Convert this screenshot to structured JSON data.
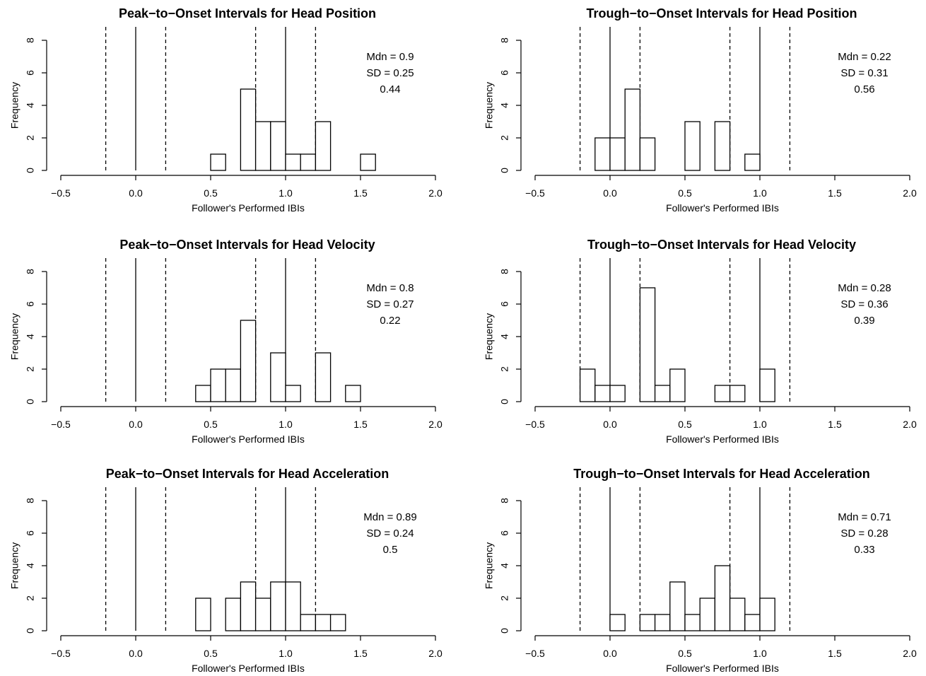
{
  "x_ticks": [
    -0.5,
    0.0,
    0.5,
    1.0,
    1.5,
    2.0
  ],
  "x_tick_labels": [
    "−0.5",
    "0.0",
    "0.5",
    "1.0",
    "1.5",
    "2.0"
  ],
  "y_ticks": [
    0,
    2,
    4,
    6,
    8
  ],
  "y_tick_labels": [
    "0",
    "2",
    "4",
    "6",
    "8"
  ],
  "chart_data": [
    {
      "type": "bar",
      "title": "Peak−to−Onset Intervals for Head Position",
      "xlabel": "Follower's Performed IBIs",
      "ylabel": "Frequency",
      "xlim": [
        -0.5,
        2.0
      ],
      "ylim": [
        0,
        8
      ],
      "bin_width": 0.1,
      "bins": [
        {
          "x0": 0.5,
          "count": 1
        },
        {
          "x0": 0.7,
          "count": 5
        },
        {
          "x0": 0.8,
          "count": 3
        },
        {
          "x0": 0.9,
          "count": 3
        },
        {
          "x0": 1.0,
          "count": 1
        },
        {
          "x0": 1.1,
          "count": 1
        },
        {
          "x0": 1.2,
          "count": 3
        },
        {
          "x0": 1.5,
          "count": 1
        }
      ],
      "solid_lines": [
        0.0,
        1.0
      ],
      "dashed_lines": [
        -0.2,
        0.2,
        0.8,
        1.2
      ],
      "stats": [
        "Mdn =  0.9",
        "SD =  0.25",
        "0.44"
      ]
    },
    {
      "type": "bar",
      "title": "Trough−to−Onset Intervals for Head Position",
      "xlabel": "Follower's Performed IBIs",
      "ylabel": "Frequency",
      "xlim": [
        -0.5,
        2.0
      ],
      "ylim": [
        0,
        8
      ],
      "bin_width": 0.1,
      "bins": [
        {
          "x0": -0.1,
          "count": 2
        },
        {
          "x0": 0.0,
          "count": 2
        },
        {
          "x0": 0.1,
          "count": 5
        },
        {
          "x0": 0.2,
          "count": 2
        },
        {
          "x0": 0.5,
          "count": 3
        },
        {
          "x0": 0.7,
          "count": 3
        },
        {
          "x0": 0.9,
          "count": 1
        }
      ],
      "solid_lines": [
        0.0,
        1.0
      ],
      "dashed_lines": [
        -0.2,
        0.2,
        0.8,
        1.2
      ],
      "stats": [
        "Mdn =  0.22",
        "SD =  0.31",
        "0.56"
      ]
    },
    {
      "type": "bar",
      "title": "Peak−to−Onset Intervals for Head Velocity",
      "xlabel": "Follower's Performed IBIs",
      "ylabel": "Frequency",
      "xlim": [
        -0.5,
        2.0
      ],
      "ylim": [
        0,
        8
      ],
      "bin_width": 0.1,
      "bins": [
        {
          "x0": 0.4,
          "count": 1
        },
        {
          "x0": 0.5,
          "count": 2
        },
        {
          "x0": 0.6,
          "count": 2
        },
        {
          "x0": 0.7,
          "count": 5
        },
        {
          "x0": 0.9,
          "count": 3
        },
        {
          "x0": 1.0,
          "count": 1
        },
        {
          "x0": 1.2,
          "count": 3
        },
        {
          "x0": 1.4,
          "count": 1
        }
      ],
      "solid_lines": [
        0.0,
        1.0
      ],
      "dashed_lines": [
        -0.2,
        0.2,
        0.8,
        1.2
      ],
      "stats": [
        "Mdn =  0.8",
        "SD =  0.27",
        "0.22"
      ]
    },
    {
      "type": "bar",
      "title": "Trough−to−Onset Intervals for Head Velocity",
      "xlabel": "Follower's Performed IBIs",
      "ylabel": "Frequency",
      "xlim": [
        -0.5,
        2.0
      ],
      "ylim": [
        0,
        8
      ],
      "bin_width": 0.1,
      "bins": [
        {
          "x0": -0.2,
          "count": 2
        },
        {
          "x0": -0.1,
          "count": 1
        },
        {
          "x0": 0.0,
          "count": 1
        },
        {
          "x0": 0.2,
          "count": 7
        },
        {
          "x0": 0.3,
          "count": 1
        },
        {
          "x0": 0.4,
          "count": 2
        },
        {
          "x0": 0.7,
          "count": 1
        },
        {
          "x0": 0.8,
          "count": 1
        },
        {
          "x0": 1.0,
          "count": 2
        }
      ],
      "solid_lines": [
        0.0,
        1.0
      ],
      "dashed_lines": [
        -0.2,
        0.2,
        0.8,
        1.2
      ],
      "stats": [
        "Mdn =  0.28",
        "SD =  0.36",
        "0.39"
      ]
    },
    {
      "type": "bar",
      "title": "Peak−to−Onset Intervals for Head Acceleration",
      "xlabel": "Follower's Performed IBIs",
      "ylabel": "Frequency",
      "xlim": [
        -0.5,
        2.0
      ],
      "ylim": [
        0,
        8
      ],
      "bin_width": 0.1,
      "bins": [
        {
          "x0": 0.4,
          "count": 2
        },
        {
          "x0": 0.6,
          "count": 2
        },
        {
          "x0": 0.7,
          "count": 3
        },
        {
          "x0": 0.8,
          "count": 2
        },
        {
          "x0": 0.9,
          "count": 3
        },
        {
          "x0": 1.0,
          "count": 3
        },
        {
          "x0": 1.1,
          "count": 1
        },
        {
          "x0": 1.2,
          "count": 1
        },
        {
          "x0": 1.3,
          "count": 1
        }
      ],
      "solid_lines": [
        0.0,
        1.0
      ],
      "dashed_lines": [
        -0.2,
        0.2,
        0.8,
        1.2
      ],
      "stats": [
        "Mdn =  0.89",
        "SD =  0.24",
        "0.5"
      ]
    },
    {
      "type": "bar",
      "title": "Trough−to−Onset Intervals for Head Acceleration",
      "xlabel": "Follower's Performed IBIs",
      "ylabel": "Frequency",
      "xlim": [
        -0.5,
        2.0
      ],
      "ylim": [
        0,
        8
      ],
      "bin_width": 0.1,
      "bins": [
        {
          "x0": 0.0,
          "count": 1
        },
        {
          "x0": 0.2,
          "count": 1
        },
        {
          "x0": 0.3,
          "count": 1
        },
        {
          "x0": 0.4,
          "count": 3
        },
        {
          "x0": 0.5,
          "count": 1
        },
        {
          "x0": 0.6,
          "count": 2
        },
        {
          "x0": 0.7,
          "count": 4
        },
        {
          "x0": 0.8,
          "count": 2
        },
        {
          "x0": 0.9,
          "count": 1
        },
        {
          "x0": 1.0,
          "count": 2
        }
      ],
      "solid_lines": [
        0.0,
        1.0
      ],
      "dashed_lines": [
        -0.2,
        0.2,
        0.8,
        1.2
      ],
      "stats": [
        "Mdn =  0.71",
        "SD =  0.28",
        "0.33"
      ]
    }
  ]
}
